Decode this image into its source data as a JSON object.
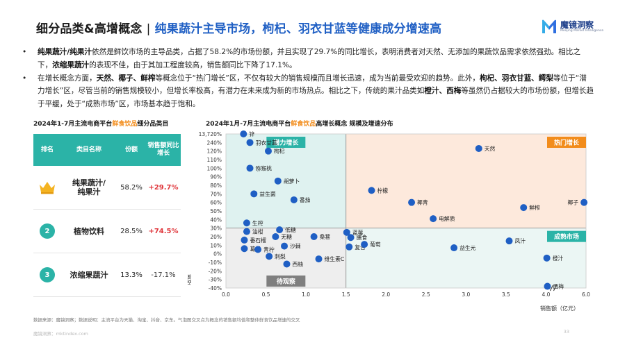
{
  "header": {
    "title_part1": "细分品类&高增概念",
    "separator": "|",
    "title_part2": "纯果蔬汁主导市场，枸杞、羽衣甘蓝等健康成分增速高"
  },
  "logo": {
    "name": "魔镜洞察",
    "sub": "Moojing Market Intelligence",
    "accent": "#2f6fe0"
  },
  "bullets": [
    [
      {
        "t": "纯果蔬汁/纯果汁",
        "b": true
      },
      {
        "t": "依然是鲜饮市场的主导品类，占据了58.2%的市场份额，并且实现了29.7%的同比增长，表明消费者对天然、无添加的果蔬饮品需求依然强劲。相比之下，"
      },
      {
        "t": "浓缩果蔬汁",
        "b": true
      },
      {
        "t": "的表现不佳，由于其加工程度较高，销售额同比下降了17.1%。"
      }
    ],
    [
      {
        "t": "在增长概念方面，"
      },
      {
        "t": "天然、椰子、鲜榨",
        "b": true
      },
      {
        "t": "等概念位于“热门增长”区，不仅有较大的销售规模而且增长迅速，成为当前最受欢迎的趋势。此外，"
      },
      {
        "t": "枸杞、羽衣甘蓝、鳄梨",
        "b": true
      },
      {
        "t": "等位于“潜力增长”区，尽管当前的销售规模较小，但增长率极高，有潜力在未来成为新的市场热点。相比之下，传统的果汁品类如"
      },
      {
        "t": "橙汁、西梅",
        "b": true
      },
      {
        "t": "等虽然仍占据较大的市场份额，但增长趋于平缓，处于“成熟市场”区，市场基本趋于饱和。"
      }
    ]
  ],
  "bullet_symbol": "•",
  "left_panel": {
    "title_a": "2024年1-7月主流电商平台",
    "title_hl": "鲜食饮品",
    "title_b": "细分品类目",
    "columns": [
      "排名",
      "类目名称",
      "份额",
      "销售额同比增长"
    ],
    "rows": [
      {
        "rank": "crown",
        "name": "纯果蔬汁/\n纯果汁",
        "share": "58.2%",
        "growth": "+29.7%",
        "trend": "up"
      },
      {
        "rank": "2",
        "name": "植物饮料",
        "share": "28.5%",
        "growth": "+74.5%",
        "trend": "up"
      },
      {
        "rank": "3",
        "name": "浓缩果蔬汁",
        "share": "13.3%",
        "growth": "-17.1%",
        "trend": "down"
      }
    ]
  },
  "chart_data": {
    "type": "scatter",
    "title_a": "2024年1月-7月主流电商平台",
    "title_hl": "鲜食饮品",
    "title_b": "高增长概念 规模及增速分布",
    "xlabel": "销售额（亿元）",
    "ylabel": "增速",
    "xlim": [
      0,
      6.0
    ],
    "x_ticks": [
      "0.0",
      "0.5",
      "1.0",
      "1.5",
      "2.0",
      "2.5",
      "3.0",
      "3.5",
      "4.0",
      "6.0"
    ],
    "y_ticks": [
      "13,720%",
      "240%",
      "120%",
      "110%",
      "100%",
      "90%",
      "80%",
      "70%",
      "60%",
      "50%",
      "40%",
      "30%",
      "20%",
      "10%",
      "0%",
      "-10%",
      "-20%",
      "-30%",
      "-40%"
    ],
    "x_divider": 1.5,
    "y_divider": "30%",
    "quadrants": {
      "top_left": "潜力增长",
      "top_right": "热门增长",
      "bottom_right": "成熟市场",
      "bottom_left": "待观察"
    },
    "colors": {
      "point": "#1f5fc4",
      "potential": "#dff2f0",
      "hot": "#fde9dc",
      "mature": "#ebf6f4",
      "watch": "#eeeeee",
      "badge_teal": "#2bb3a7",
      "badge_orange": "#f28c1b",
      "badge_gray": "#7f7f7f"
    },
    "points": [
      {
        "name": "锌",
        "x": 0.22,
        "y": "13,720%"
      },
      {
        "name": "羽衣甘蓝",
        "x": 0.3,
        "y": "240%"
      },
      {
        "name": "枸杞",
        "x": 0.53,
        "y": "120%"
      },
      {
        "name": "猕猴桃",
        "x": 0.3,
        "y": "100%"
      },
      {
        "name": "胡萝卜",
        "x": 0.65,
        "y": "85%"
      },
      {
        "name": "益生菌",
        "x": 0.35,
        "y": "70%"
      },
      {
        "name": "番茄",
        "x": 0.85,
        "y": "63%"
      },
      {
        "name": "生榨",
        "x": 0.26,
        "y": "36%"
      },
      {
        "name": "油柑",
        "x": 0.26,
        "y": "26%"
      },
      {
        "name": "低糖",
        "x": 0.67,
        "y": "28%"
      },
      {
        "name": "无糖",
        "x": 0.62,
        "y": "20%"
      },
      {
        "name": "番石榴",
        "x": 0.23,
        "y": "16%"
      },
      {
        "name": "沙棘",
        "x": 0.73,
        "y": "9%"
      },
      {
        "name": "桑葚",
        "x": 1.1,
        "y": "20%"
      },
      {
        "name": "葛根",
        "x": 0.23,
        "y": "6%"
      },
      {
        "name": "青柠",
        "x": 0.4,
        "y": "5%"
      },
      {
        "name": "刺梨",
        "x": 0.54,
        "y": "-3%"
      },
      {
        "name": "西柚",
        "x": 0.76,
        "y": "-12%"
      },
      {
        "name": "维生素C",
        "x": 1.16,
        "y": "-6%"
      },
      {
        "name": "蓝莓",
        "x": 1.51,
        "y": "25%"
      },
      {
        "name": "膳食",
        "x": 1.56,
        "y": "19%"
      },
      {
        "name": "复合",
        "x": 1.54,
        "y": "8%"
      },
      {
        "name": "葡萄",
        "x": 1.73,
        "y": "11%"
      },
      {
        "name": "柠檬",
        "x": 1.82,
        "y": "74%"
      },
      {
        "name": "椰青",
        "x": 2.32,
        "y": "60%"
      },
      {
        "name": "电解质",
        "x": 2.59,
        "y": "41%"
      },
      {
        "name": "天然",
        "x": 3.16,
        "y": "123%"
      },
      {
        "name": "鲜榨",
        "x": 3.72,
        "y": "54%"
      },
      {
        "name": "椰子",
        "x": 5.9,
        "y": "60%"
      },
      {
        "name": "益生元",
        "x": 2.85,
        "y": "7%"
      },
      {
        "name": "凤汁",
        "x": 3.54,
        "y": "15%"
      },
      {
        "name": "橙汁",
        "x": 4.04,
        "y": "-5%"
      },
      {
        "name": "西梅",
        "x": 4.07,
        "y": "-38%"
      }
    ]
  },
  "footnote": "数据来源：魔镜洞察；数据说明：主流平台为天猫、淘宝、抖音、京东。气泡图交叉点为概念的销售额均值和整体鲜食饮品增速的交叉",
  "footer_url": "魔镜洞察：mktindex.com",
  "page_number": "33"
}
